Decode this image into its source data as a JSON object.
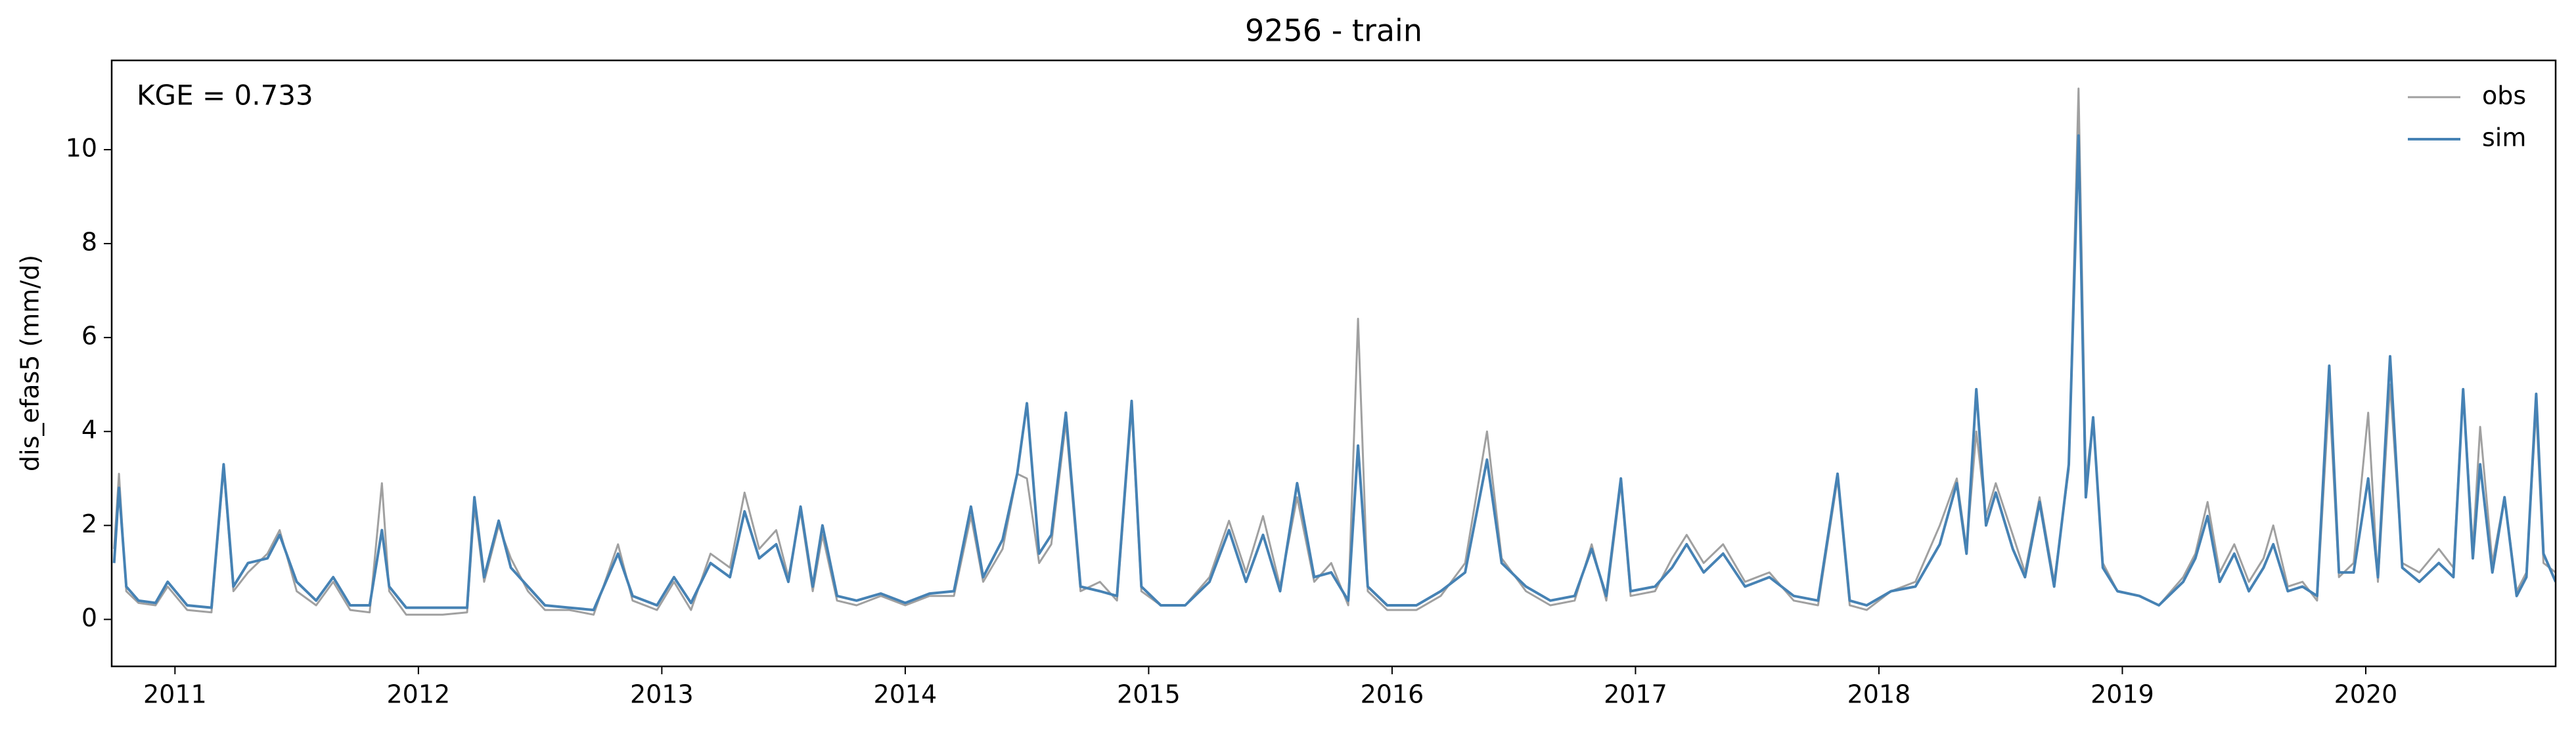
{
  "chart_data": {
    "type": "line",
    "title": "9256 - train",
    "y_label": "dis_efas5 (mm/d)",
    "annotation": "KGE = 0.733",
    "legend": "upper right",
    "grid": false,
    "xlim": [
      2010.74,
      2020.78
    ],
    "xticks": [
      2011,
      2012,
      2013,
      2014,
      2015,
      2016,
      2017,
      2018,
      2019,
      2020
    ],
    "ylim": [
      -1,
      11.9
    ],
    "yticks": [
      0,
      2,
      4,
      6,
      8,
      10
    ],
    "x": [
      2010.75,
      2010.77,
      2010.8,
      2010.85,
      2010.92,
      2010.97,
      2011.05,
      2011.15,
      2011.2,
      2011.24,
      2011.3,
      2011.38,
      2011.43,
      2011.5,
      2011.58,
      2011.65,
      2011.72,
      2011.8,
      2011.85,
      2011.88,
      2011.95,
      2012.1,
      2012.2,
      2012.23,
      2012.27,
      2012.33,
      2012.38,
      2012.45,
      2012.52,
      2012.62,
      2012.72,
      2012.82,
      2012.88,
      2012.98,
      2013.05,
      2013.12,
      2013.2,
      2013.28,
      2013.34,
      2013.4,
      2013.47,
      2013.52,
      2013.57,
      2013.62,
      2013.66,
      2013.72,
      2013.8,
      2013.9,
      2014.0,
      2014.1,
      2014.2,
      2014.27,
      2014.32,
      2014.4,
      2014.46,
      2014.5,
      2014.55,
      2014.6,
      2014.66,
      2014.72,
      2014.8,
      2014.87,
      2014.93,
      2014.97,
      2015.05,
      2015.15,
      2015.25,
      2015.33,
      2015.4,
      2015.47,
      2015.54,
      2015.61,
      2015.68,
      2015.75,
      2015.82,
      2015.86,
      2015.9,
      2015.98,
      2016.1,
      2016.2,
      2016.3,
      2016.39,
      2016.45,
      2016.55,
      2016.65,
      2016.75,
      2016.82,
      2016.88,
      2016.94,
      2016.98,
      2017.08,
      2017.15,
      2017.21,
      2017.28,
      2017.36,
      2017.45,
      2017.55,
      2017.65,
      2017.75,
      2017.83,
      2017.88,
      2017.95,
      2018.05,
      2018.15,
      2018.25,
      2018.32,
      2018.36,
      2018.4,
      2018.44,
      2018.48,
      2018.55,
      2018.6,
      2018.66,
      2018.72,
      2018.78,
      2018.82,
      2018.85,
      2018.88,
      2018.92,
      2018.98,
      2019.07,
      2019.15,
      2019.25,
      2019.3,
      2019.35,
      2019.4,
      2019.46,
      2019.52,
      2019.58,
      2019.62,
      2019.68,
      2019.74,
      2019.8,
      2019.85,
      2019.89,
      2019.95,
      2020.01,
      2020.05,
      2020.1,
      2020.15,
      2020.22,
      2020.3,
      2020.36,
      2020.4,
      2020.44,
      2020.47,
      2020.52,
      2020.57,
      2020.62,
      2020.66,
      2020.7,
      2020.73,
      2020.78
    ],
    "series": [
      {
        "name": "obs",
        "color": "#a0a0a0",
        "values": [
          1.5,
          3.1,
          0.6,
          0.35,
          0.3,
          0.7,
          0.2,
          0.15,
          3.2,
          0.6,
          1.0,
          1.4,
          1.9,
          0.6,
          0.3,
          0.8,
          0.2,
          0.15,
          2.9,
          0.6,
          0.1,
          0.1,
          0.15,
          2.4,
          0.8,
          2.0,
          1.3,
          0.6,
          0.2,
          0.2,
          0.1,
          1.6,
          0.4,
          0.2,
          0.8,
          0.2,
          1.4,
          1.1,
          2.7,
          1.5,
          1.9,
          0.9,
          2.3,
          0.6,
          1.8,
          0.4,
          0.3,
          0.5,
          0.3,
          0.5,
          0.5,
          2.2,
          0.8,
          1.5,
          3.1,
          3.0,
          1.2,
          1.6,
          4.2,
          0.6,
          0.8,
          0.4,
          4.5,
          0.6,
          0.3,
          0.3,
          0.9,
          2.1,
          1.0,
          2.2,
          0.7,
          2.6,
          0.8,
          1.2,
          0.3,
          6.4,
          0.6,
          0.2,
          0.2,
          0.5,
          1.2,
          4.0,
          1.3,
          0.6,
          0.3,
          0.4,
          1.6,
          0.4,
          2.9,
          0.5,
          0.6,
          1.3,
          1.8,
          1.2,
          1.6,
          0.8,
          1.0,
          0.4,
          0.3,
          3.0,
          0.3,
          0.2,
          0.6,
          0.8,
          2.0,
          3.0,
          1.5,
          4.0,
          2.2,
          2.9,
          1.8,
          1.0,
          2.6,
          0.8,
          3.2,
          11.3,
          3.0,
          4.2,
          1.2,
          0.6,
          0.5,
          0.3,
          0.9,
          1.4,
          2.5,
          1.0,
          1.6,
          0.8,
          1.3,
          2.0,
          0.7,
          0.8,
          0.4,
          4.8,
          0.9,
          1.2,
          4.4,
          0.8,
          5.0,
          1.2,
          1.0,
          1.5,
          1.1,
          4.9,
          1.5,
          4.1,
          1.2,
          2.6,
          0.6,
          1.0,
          4.5,
          1.2,
          1.0
        ]
      },
      {
        "name": "sim",
        "color": "#4682b4",
        "values": [
          1.2,
          2.8,
          0.7,
          0.4,
          0.35,
          0.8,
          0.3,
          0.25,
          3.3,
          0.7,
          1.2,
          1.3,
          1.8,
          0.8,
          0.4,
          0.9,
          0.3,
          0.3,
          1.9,
          0.7,
          0.25,
          0.25,
          0.25,
          2.6,
          0.9,
          2.1,
          1.1,
          0.7,
          0.3,
          0.25,
          0.2,
          1.4,
          0.5,
          0.3,
          0.9,
          0.35,
          1.2,
          0.9,
          2.3,
          1.3,
          1.6,
          0.8,
          2.4,
          0.7,
          2.0,
          0.5,
          0.4,
          0.55,
          0.35,
          0.55,
          0.6,
          2.4,
          0.9,
          1.7,
          3.1,
          4.6,
          1.4,
          1.8,
          4.4,
          0.7,
          0.6,
          0.5,
          4.65,
          0.7,
          0.3,
          0.3,
          0.8,
          1.9,
          0.8,
          1.8,
          0.6,
          2.9,
          0.9,
          1.0,
          0.4,
          3.7,
          0.7,
          0.3,
          0.3,
          0.6,
          1.0,
          3.4,
          1.2,
          0.7,
          0.4,
          0.5,
          1.5,
          0.5,
          3.0,
          0.6,
          0.7,
          1.1,
          1.6,
          1.0,
          1.4,
          0.7,
          0.9,
          0.5,
          0.4,
          3.1,
          0.4,
          0.3,
          0.6,
          0.7,
          1.6,
          2.9,
          1.4,
          4.9,
          2.0,
          2.7,
          1.5,
          0.9,
          2.5,
          0.7,
          3.3,
          10.3,
          2.6,
          4.3,
          1.1,
          0.6,
          0.5,
          0.3,
          0.8,
          1.3,
          2.2,
          0.8,
          1.4,
          0.6,
          1.1,
          1.6,
          0.6,
          0.7,
          0.5,
          5.4,
          1.0,
          1.0,
          3.0,
          0.9,
          5.6,
          1.1,
          0.8,
          1.2,
          0.9,
          4.9,
          1.3,
          3.3,
          1.0,
          2.6,
          0.5,
          0.9,
          4.8,
          1.4,
          0.8
        ]
      }
    ]
  }
}
